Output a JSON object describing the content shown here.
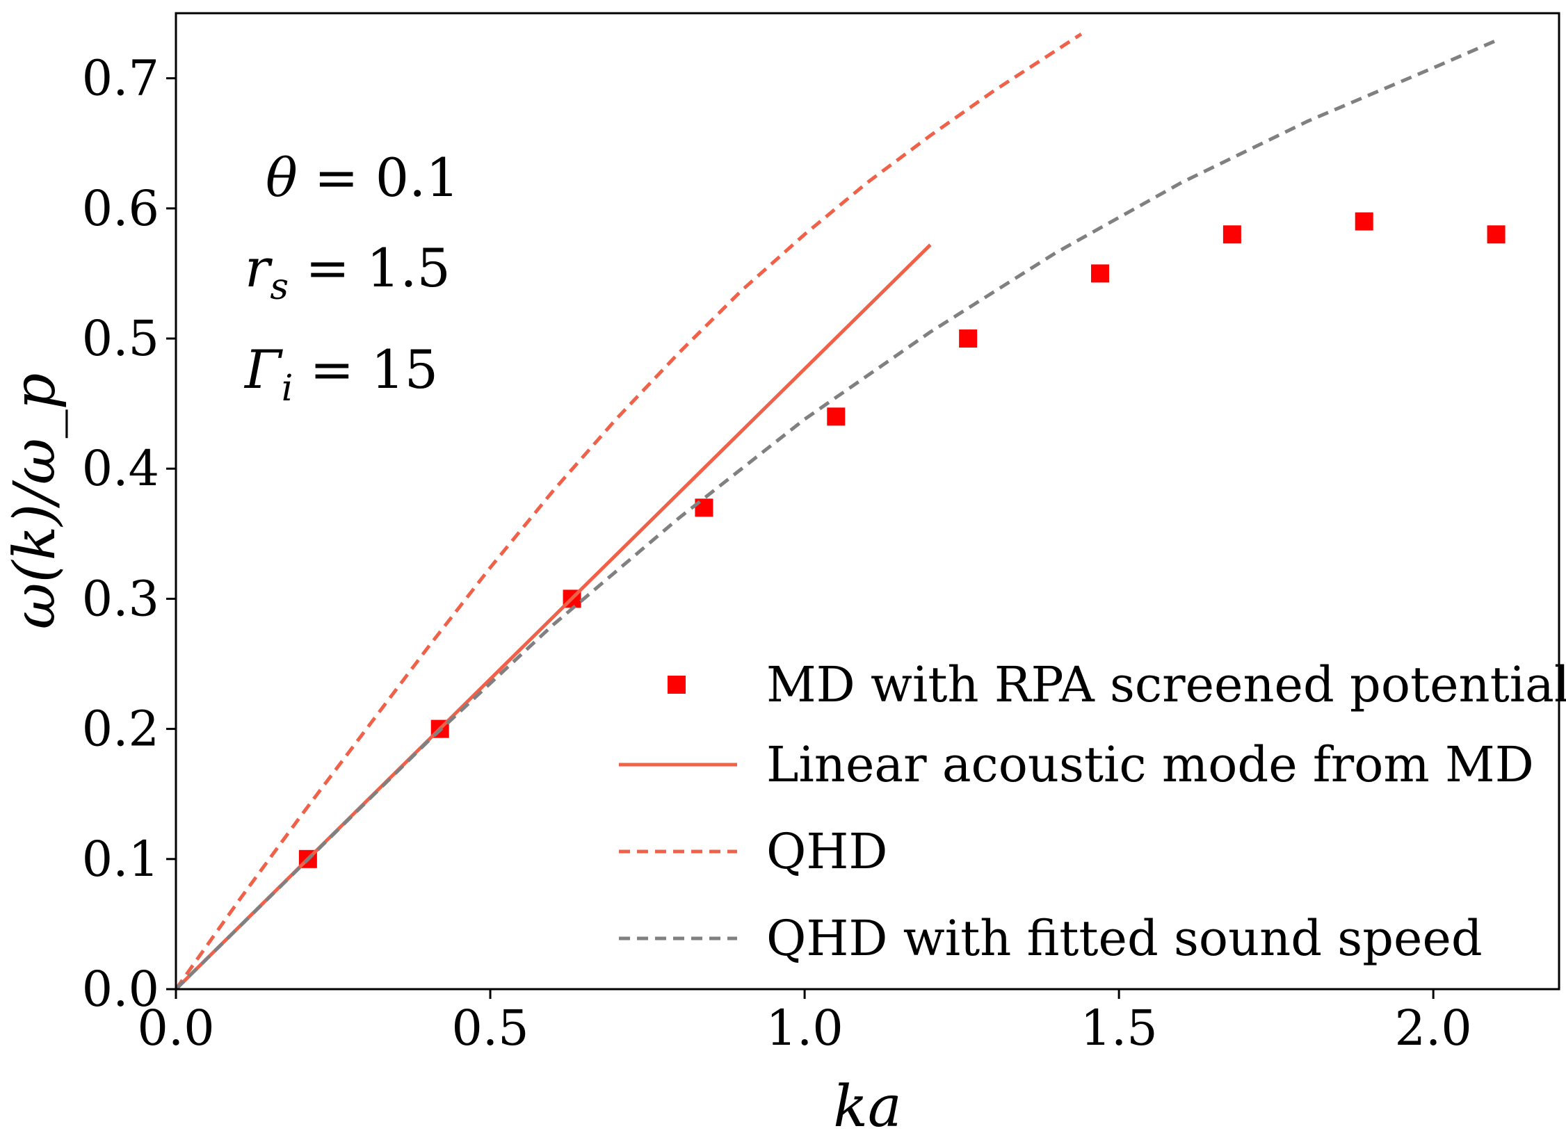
{
  "chart_data": {
    "type": "scatter",
    "xlabel": "ka",
    "ylabel": "ω(k)/ω_p",
    "xlim": [
      0.0,
      2.2
    ],
    "ylim": [
      0.0,
      0.75
    ],
    "xticks": [
      "0.0",
      "0.5",
      "1.0",
      "1.5",
      "2.0"
    ],
    "yticks": [
      "0.0",
      "0.1",
      "0.2",
      "0.3",
      "0.4",
      "0.5",
      "0.6",
      "0.7"
    ],
    "grid": false,
    "legend_position": "lower-right",
    "annotations": [
      {
        "lhs": "θ",
        "sub": "",
        "rhs": "= 0.1"
      },
      {
        "lhs": "r",
        "sub": "s",
        "rhs": "= 1.5"
      },
      {
        "lhs": "Γ",
        "sub": "i",
        "rhs": "= 15"
      }
    ],
    "series": [
      {
        "name": "MD with RPA screened potential",
        "kind": "markers",
        "color": "#ff0000",
        "x": [
          0.21,
          0.42,
          0.63,
          0.84,
          1.05,
          1.26,
          1.47,
          1.68,
          1.89,
          2.1
        ],
        "y": [
          0.1,
          0.2,
          0.3,
          0.37,
          0.44,
          0.5,
          0.55,
          0.58,
          0.59,
          0.58
        ]
      },
      {
        "name": "Linear acoustic mode from MD",
        "kind": "solid",
        "color": "#f0614a",
        "x": [
          0.0,
          1.2
        ],
        "y": [
          0.0,
          0.572
        ]
      },
      {
        "name": "QHD",
        "kind": "dashed",
        "color": "#f0614a",
        "x": [
          0.0,
          0.1,
          0.2,
          0.3,
          0.4,
          0.5,
          0.6,
          0.7,
          0.8,
          0.9,
          1.0,
          1.1,
          1.2,
          1.3,
          1.44
        ],
        "y": [
          0.0,
          0.068,
          0.134,
          0.198,
          0.262,
          0.324,
          0.383,
          0.438,
          0.489,
          0.537,
          0.58,
          0.62,
          0.656,
          0.69,
          0.734
        ]
      },
      {
        "name": "QHD with fitted sound speed",
        "kind": "dashed",
        "color": "#808080",
        "x": [
          0.0,
          0.2,
          0.4,
          0.6,
          0.8,
          1.0,
          1.2,
          1.4,
          1.6,
          1.8,
          2.0,
          2.1
        ],
        "y": [
          0.0,
          0.095,
          0.19,
          0.28,
          0.362,
          0.438,
          0.505,
          0.566,
          0.62,
          0.667,
          0.708,
          0.729
        ]
      }
    ]
  }
}
